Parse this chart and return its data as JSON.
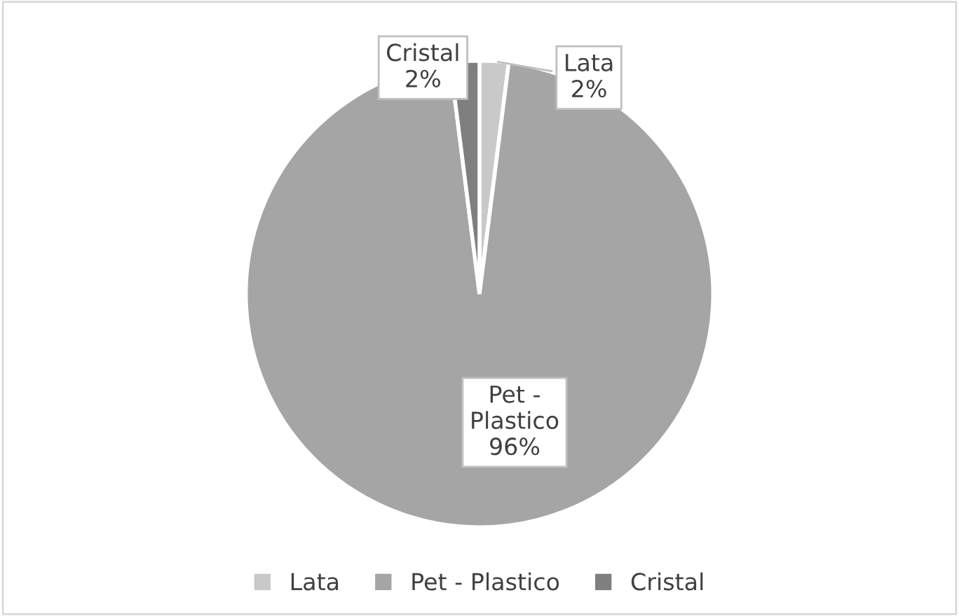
{
  "chart_data": {
    "type": "pie",
    "categories": [
      "Lata",
      "Pet - Plastico",
      "Cristal"
    ],
    "values": [
      2,
      96,
      2
    ],
    "colors": [
      "#c9c9c9",
      "#a5a5a5",
      "#7f7f7f"
    ],
    "value_labels": [
      "2%",
      "96%",
      "2%"
    ],
    "legend": "bottom"
  }
}
